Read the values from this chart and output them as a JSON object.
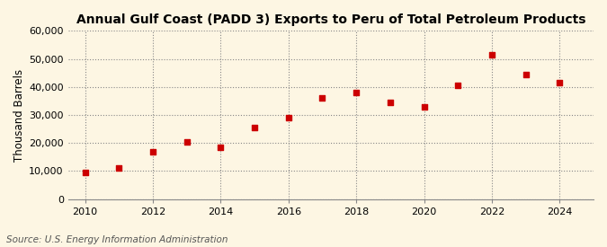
{
  "title": "Annual Gulf Coast (PADD 3) Exports to Peru of Total Petroleum Products",
  "ylabel": "Thousand Barrels",
  "source": "Source: U.S. Energy Information Administration",
  "background_color": "#fdf6e3",
  "marker_color": "#cc0000",
  "years": [
    2010,
    2011,
    2012,
    2013,
    2014,
    2015,
    2016,
    2017,
    2018,
    2019,
    2020,
    2021,
    2022,
    2023,
    2024
  ],
  "values": [
    9500,
    11000,
    17000,
    20500,
    18500,
    25500,
    29000,
    36000,
    38000,
    34500,
    33000,
    40500,
    51500,
    44500,
    41500
  ],
  "ylim": [
    0,
    60000
  ],
  "yticks": [
    0,
    10000,
    20000,
    30000,
    40000,
    50000,
    60000
  ],
  "xlim": [
    2009.5,
    2025.0
  ],
  "xticks": [
    2010,
    2012,
    2014,
    2016,
    2018,
    2020,
    2022,
    2024
  ],
  "title_fontsize": 10,
  "label_fontsize": 8.5,
  "tick_fontsize": 8,
  "source_fontsize": 7.5
}
